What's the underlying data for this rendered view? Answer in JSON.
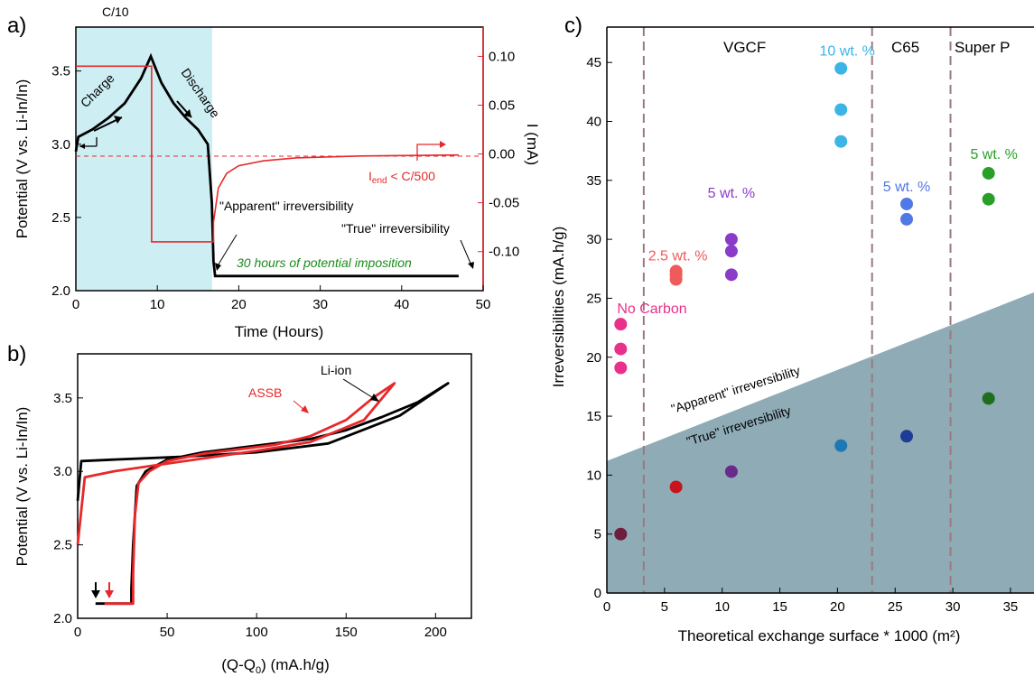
{
  "panels": {
    "a": {
      "label": "a)",
      "chart_data": {
        "type": "line",
        "xlabel": "Time (Hours)",
        "ylabel": "Potential (V vs. Li-In/In)",
        "ylabel_right": "I (mA)",
        "xlim": [
          0,
          50
        ],
        "ylim": [
          2.0,
          3.8
        ],
        "ylim_right": [
          -0.14,
          0.13
        ],
        "xticks": [
          "0",
          "10",
          "20",
          "30",
          "40",
          "50"
        ],
        "yticks": [
          "2.0",
          "2.5",
          "3.0",
          "3.5"
        ],
        "yticks_right": [
          "-0.10",
          "-0.05",
          "0.00",
          "0.05",
          "0.10"
        ],
        "shaded_region": [
          0,
          16.8
        ],
        "shaded_color": "#cdeef2",
        "series": [
          {
            "name": "potential",
            "color": "#000000",
            "x": [
              0,
              0.3,
              2,
              4,
              6,
              8,
              9.2,
              10.5,
              12,
              13.5,
              15,
              16.2,
              16.7,
              16.9,
              17.1,
              30,
              47
            ],
            "y": [
              2.95,
              3.05,
              3.1,
              3.18,
              3.28,
              3.45,
              3.6,
              3.42,
              3.28,
              3.18,
              3.1,
              3.0,
              2.6,
              2.2,
              2.1,
              2.1,
              2.1
            ]
          },
          {
            "name": "current",
            "color": "#e8282a",
            "x": [
              0,
              9.3,
              9.3,
              16.9,
              16.9,
              17.5,
              18.5,
              20,
              23,
              27,
              35,
              47
            ],
            "y": [
              0.09,
              0.09,
              -0.09,
              -0.09,
              -0.07,
              -0.035,
              -0.02,
              -0.012,
              -0.007,
              -0.004,
              -0.002,
              -0.001
            ]
          }
        ],
        "annotations": [
          "C/10",
          "Charge",
          "Discharge",
          "\"Apparent\" irreversibility",
          "\"True\" irreversibility",
          "30 hours of potential imposition",
          "I",
          "end",
          " < C/500"
        ]
      }
    },
    "b": {
      "label": "b)",
      "chart_data": {
        "type": "line",
        "xlabel_main": "(Q-Q",
        "xlabel_sub": "0",
        "xlabel_tail": ") (mA.h/g)",
        "ylabel": "Potential (V vs. Li-In/In)",
        "xlim": [
          0,
          220
        ],
        "ylim": [
          2.0,
          3.8
        ],
        "xticks": [
          "0",
          "50",
          "100",
          "150",
          "200"
        ],
        "yticks": [
          "2.0",
          "2.5",
          "3.0",
          "3.5"
        ],
        "series": [
          {
            "name": "Li-ion",
            "color": "#000000",
            "x": [
              0,
              2,
              20,
              60,
              100,
              140,
              180,
              207,
              190,
              170,
              150,
              130,
              110,
              90,
              70,
              50,
              38,
              33,
              31,
              30,
              30,
              10
            ],
            "y": [
              2.8,
              3.07,
              3.08,
              3.1,
              3.13,
              3.19,
              3.38,
              3.6,
              3.47,
              3.37,
              3.28,
              3.22,
              3.19,
              3.16,
              3.13,
              3.08,
              3.0,
              2.9,
              2.5,
              2.2,
              2.1,
              2.1
            ]
          },
          {
            "name": "ASSB",
            "color": "#e8282a",
            "x": [
              0,
              4,
              20,
              60,
              100,
              130,
              160,
              177,
              165,
              150,
              130,
              110,
              90,
              70,
              50,
              40,
              34,
              32,
              31,
              31,
              15
            ],
            "y": [
              2.5,
              2.96,
              3.0,
              3.07,
              3.14,
              3.2,
              3.35,
              3.6,
              3.5,
              3.35,
              3.24,
              3.18,
              3.15,
              3.12,
              3.07,
              3.0,
              2.92,
              2.7,
              2.3,
              2.1,
              2.1
            ]
          }
        ],
        "legend_labels": [
          "ASSB",
          "Li-ion"
        ]
      }
    },
    "c": {
      "label": "c)",
      "chart_data": {
        "type": "scatter",
        "xlabel": "Theoretical exchange surface  * 1000 (m²)",
        "ylabel": "Irreversibilities (mA.h/g)",
        "xlim": [
          0,
          38
        ],
        "ylim": [
          0,
          48
        ],
        "xticks": [
          "0",
          "5",
          "10",
          "15",
          "20",
          "25",
          "30",
          "35"
        ],
        "yticks": [
          "0",
          "5",
          "10",
          "15",
          "20",
          "25",
          "30",
          "35",
          "40",
          "45"
        ],
        "dashed_lines_x": [
          3.2,
          23,
          29.8
        ],
        "region_labels": [
          "VGCF",
          "C65",
          "Super P"
        ],
        "shaded_band": {
          "y_at_x0": 11.2,
          "y_at_xmax": 25.5,
          "color": "#8eabb6"
        },
        "band_labels": [
          "\"Apparent\" irreversibility",
          "\"True\" irreversibility"
        ],
        "groups": [
          {
            "label": "No Carbon",
            "color": "#e8308c",
            "x": 1.2,
            "apparent": [
              22.8,
              20.7,
              19.1
            ],
            "true_color": "#6e1e3c",
            "true": 5.0
          },
          {
            "label": "2.5 wt. %",
            "color": "#f05a5a",
            "x": 6,
            "apparent": [
              27.3,
              27.0,
              26.6
            ],
            "true_color": "#c8141e",
            "true": 9.0
          },
          {
            "label": "5 wt. %",
            "color": "#8a3cc8",
            "x": 10.8,
            "apparent": [
              30.0,
              29.0,
              27.0
            ],
            "true_color": "#6a2a8a",
            "true": 10.3
          },
          {
            "label": "10 wt. %",
            "color": "#3cb4e6",
            "x": 20.3,
            "apparent": [
              44.5,
              41.0,
              38.3
            ],
            "true_color": "#1e78b4",
            "true": 12.5
          },
          {
            "label": "5 wt. %",
            "color": "#5078e6",
            "x": 26,
            "apparent": [
              33.0,
              31.7
            ],
            "true_color": "#1e3c96",
            "true": 13.3
          },
          {
            "label": "5 wt. %",
            "color": "#28a028",
            "x": 33.1,
            "apparent": [
              35.6,
              33.4
            ],
            "true_color": "#1e6e1e",
            "true": 16.5
          }
        ]
      }
    }
  }
}
